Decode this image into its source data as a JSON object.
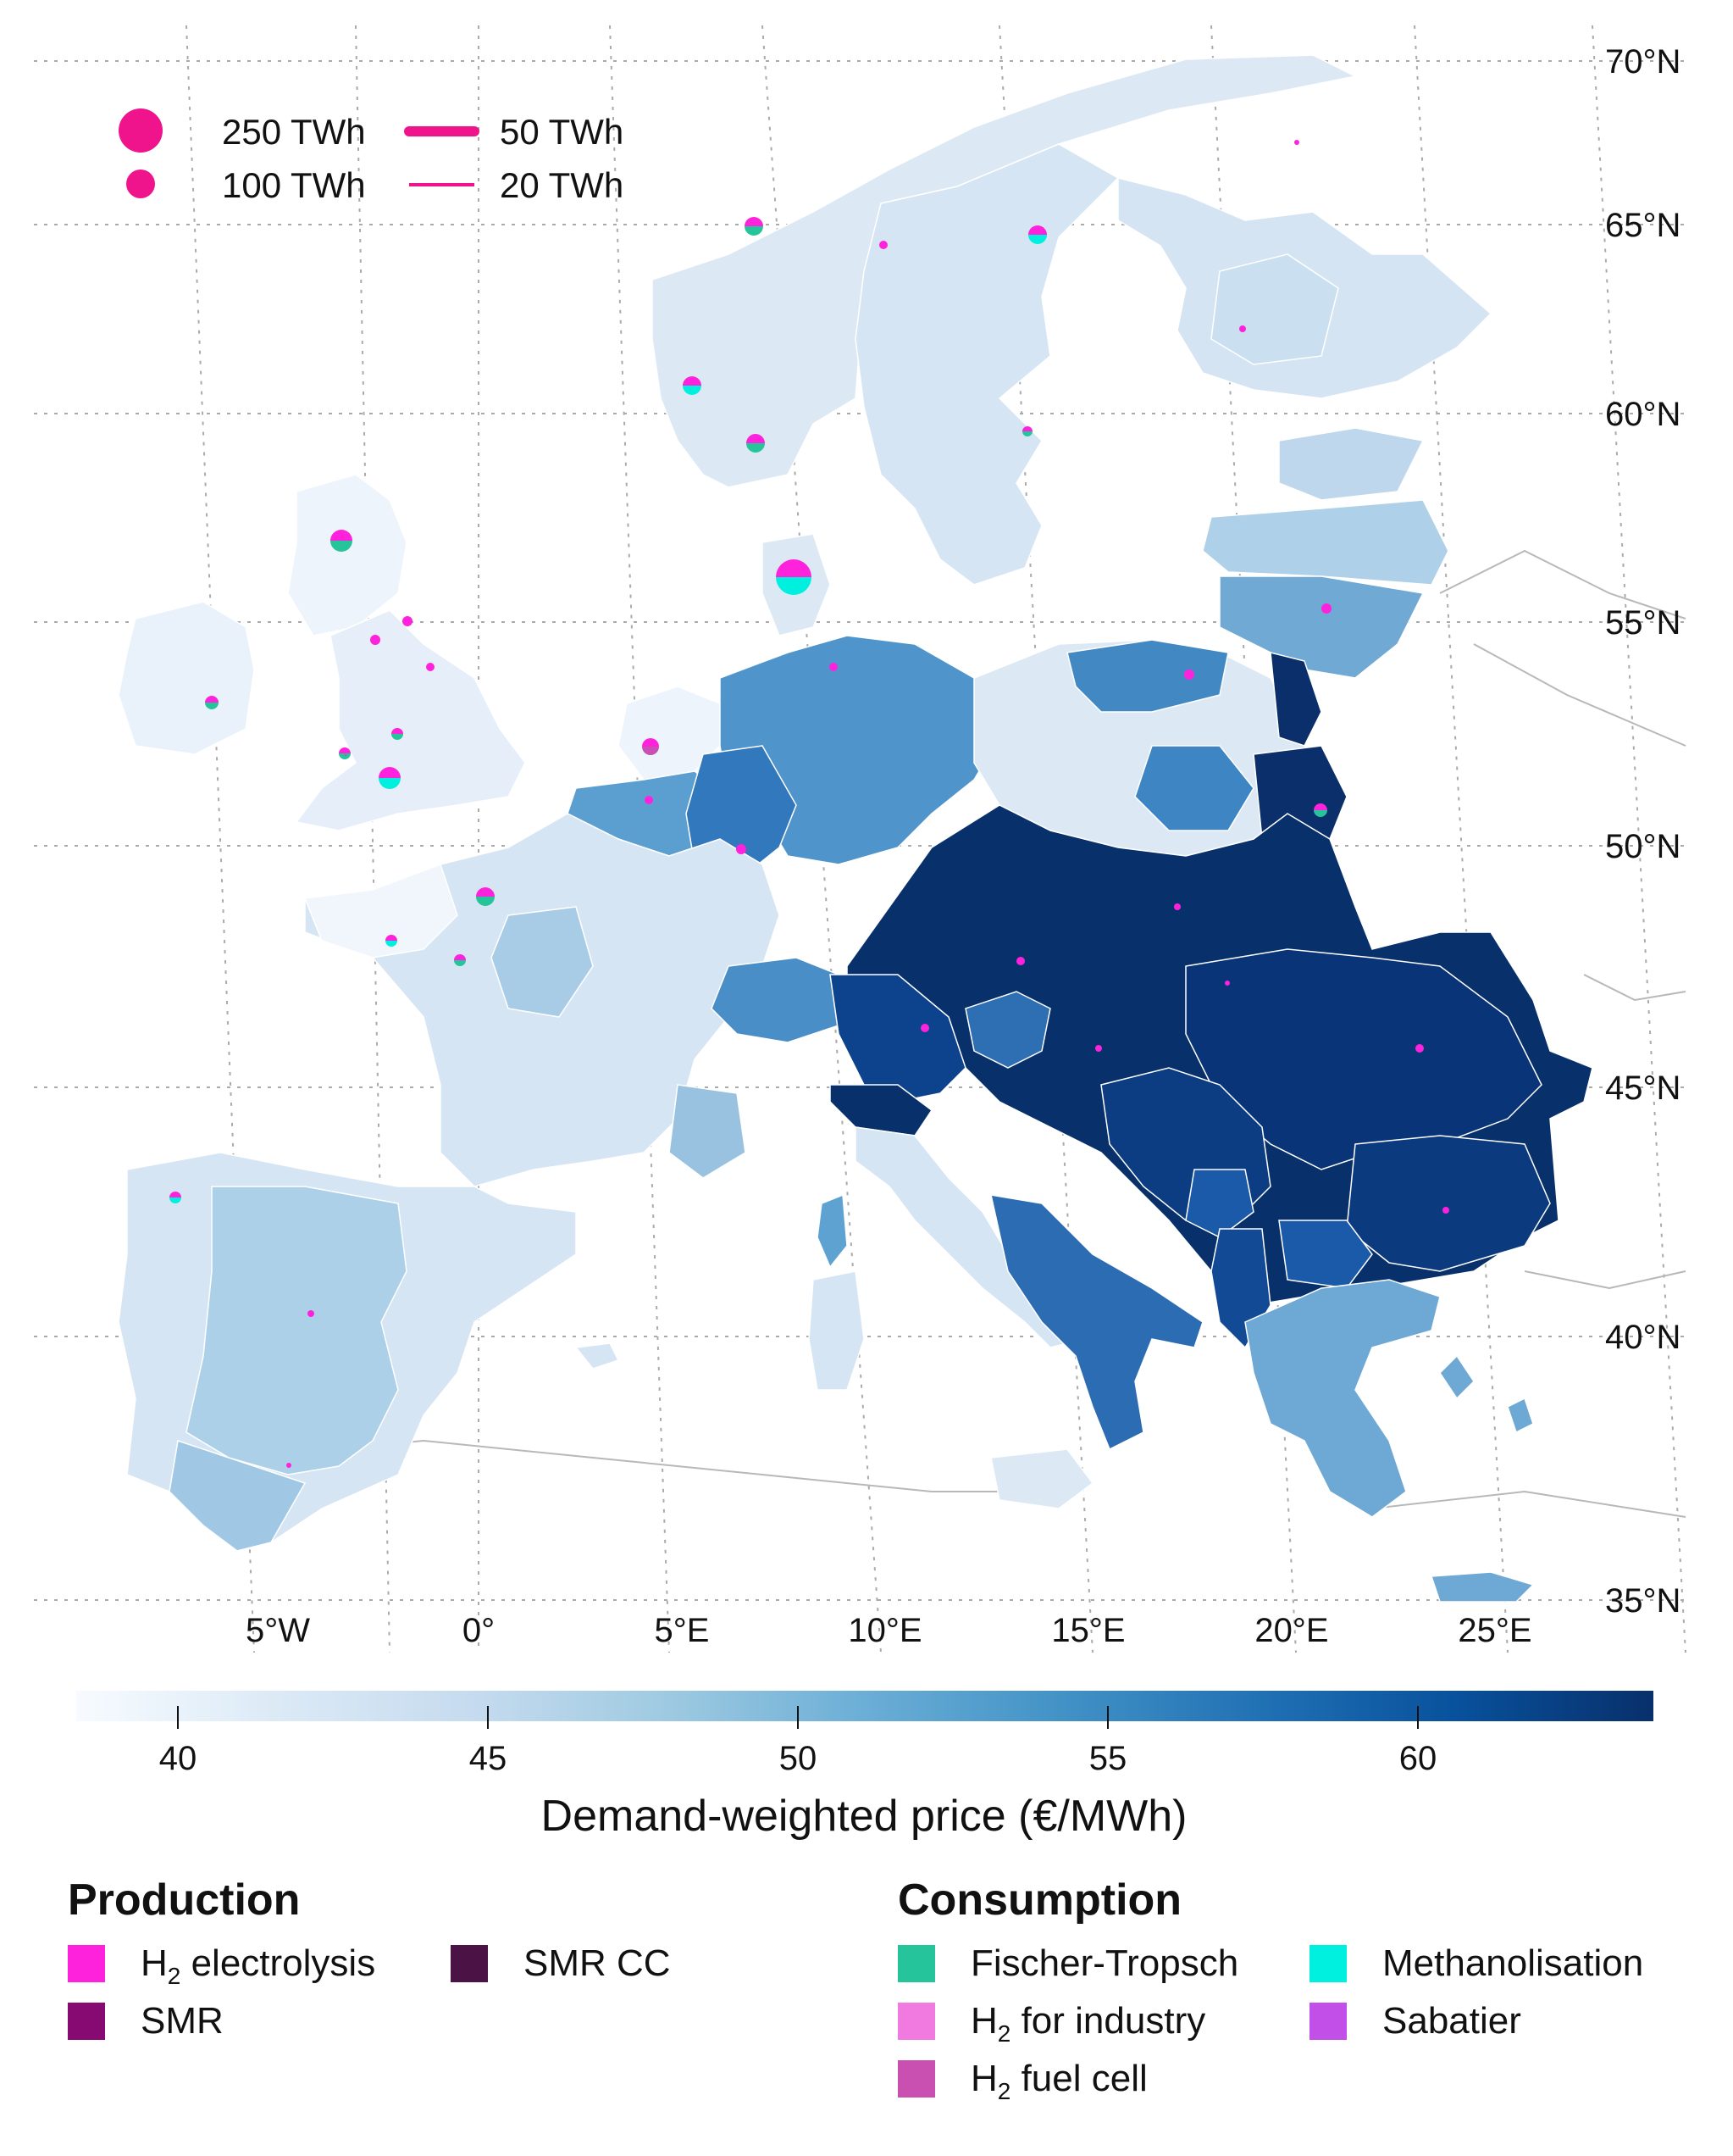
{
  "size_legend": {
    "circles": [
      "250 TWh",
      "100 TWh"
    ],
    "lines": [
      "50 TWh",
      "20 TWh"
    ],
    "color": "#f0148c"
  },
  "lat_labels": [
    "70°N",
    "65°N",
    "60°N",
    "55°N",
    "50°N",
    "45°N",
    "40°N",
    "35°N"
  ],
  "lon_labels": [
    "5°W",
    "0°",
    "5°E",
    "10°E",
    "15°E",
    "20°E",
    "25°E"
  ],
  "colorbar": {
    "ticks": [
      "40",
      "45",
      "50",
      "55",
      "60"
    ],
    "label": "Demand-weighted price (€/MWh)",
    "colors": [
      "#f7fbff",
      "#dceaf6",
      "#c6dbef",
      "#9ecae1",
      "#6baed6",
      "#4292c6",
      "#2171b5",
      "#08519c",
      "#08306b"
    ]
  },
  "production": {
    "title": "Production",
    "items": [
      {
        "pre": "H",
        "sub": "2",
        "post": " electrolysis",
        "color": "#ff22dd"
      },
      {
        "pre": "SMR",
        "sub": "",
        "post": "",
        "color": "#870a73"
      },
      {
        "pre": "SMR CC",
        "sub": "",
        "post": "",
        "color": "#4b1345"
      }
    ]
  },
  "consumption": {
    "title": "Consumption",
    "items": [
      {
        "pre": "Fischer-Tropsch",
        "sub": "",
        "post": "",
        "color": "#25c49a"
      },
      {
        "pre": "H",
        "sub": "2",
        "post": " for industry",
        "color": "#f07ae0"
      },
      {
        "pre": "H",
        "sub": "2",
        "post": " fuel cell",
        "color": "#c94fb0"
      },
      {
        "pre": "Methanolisation",
        "sub": "",
        "post": "",
        "color": "#00f0e0"
      },
      {
        "pre": "Sabatier",
        "sub": "",
        "post": "",
        "color": "#c14fe8"
      }
    ]
  }
}
